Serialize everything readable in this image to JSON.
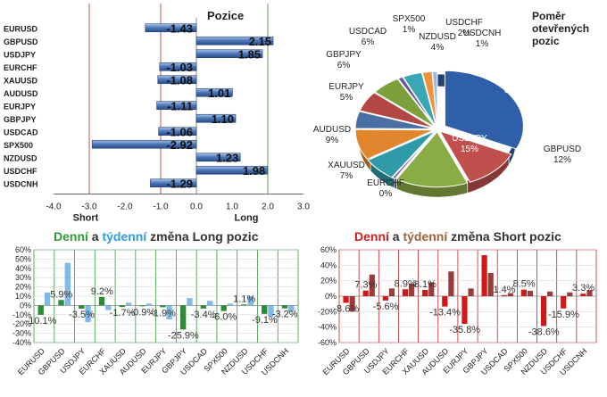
{
  "chart_data": [
    {
      "type": "bar",
      "orientation": "horizontal",
      "title": "Pozice",
      "categories": [
        "EURUSD",
        "GBPUSD",
        "USDJPY",
        "EURCHF",
        "XAUUSD",
        "AUDUSD",
        "EURJPY",
        "GBPJPY",
        "USDCAD",
        "SPX500",
        "NZDUSD",
        "USDCHF",
        "USDCNH"
      ],
      "values": [
        -1.43,
        2.15,
        1.85,
        -1.03,
        -1.08,
        1.01,
        -1.11,
        1.1,
        -1.06,
        -2.92,
        1.23,
        1.98,
        -1.29
      ],
      "value_labels": [
        "-1.43",
        "2.15",
        "1.85",
        "-1.03",
        "-1.08",
        "1.01",
        "-1.11",
        "1.10",
        "-1.06",
        "-2.92",
        "1.23",
        "1.98",
        "-1.29"
      ],
      "xlim": [
        -4.0,
        3.0
      ],
      "xticks": [
        "-4.0",
        "-3.0",
        "-2.0",
        "-1.0",
        "0.0",
        "1.0",
        "2.0",
        "3.0"
      ],
      "annotations": {
        "short": "Short",
        "long": "Long"
      },
      "reference_lines": [
        -3.0,
        -1.0,
        2.0
      ],
      "colors": {
        "bar": "#4a74b4",
        "short_line": "#c0504d",
        "long_line": "#5aa04a"
      }
    },
    {
      "type": "pie",
      "title_lines": [
        "Poměr",
        "otevřených",
        "pozic"
      ],
      "slices": [
        {
          "name": "EURUSD",
          "label": "32%",
          "value": 32,
          "color": "#2e5fa8"
        },
        {
          "name": "GBPUSD",
          "label": "12%",
          "value": 12,
          "color": "#c0504d"
        },
        {
          "name": "USDJPY",
          "label": "15%",
          "value": 15,
          "color": "#8aac46"
        },
        {
          "name": "EURCHF",
          "label": "0%",
          "value": 0.6,
          "color": "#7e5fa0"
        },
        {
          "name": "XAUUSD",
          "label": "7%",
          "value": 7,
          "color": "#2f9aa8"
        },
        {
          "name": "AUDUSD",
          "label": "9%",
          "value": 9,
          "color": "#e2862e"
        },
        {
          "name": "EURJPY",
          "label": "5%",
          "value": 5,
          "color": "#4a6fa5"
        },
        {
          "name": "GBPJPY",
          "label": "6%",
          "value": 6,
          "color": "#b24745"
        },
        {
          "name": "USDCAD",
          "label": "6%",
          "value": 6,
          "color": "#7ea03c"
        },
        {
          "name": "SPX500",
          "label": "1%",
          "value": 1,
          "color": "#6b57a0"
        },
        {
          "name": "NZDUSD",
          "label": "4%",
          "value": 4,
          "color": "#39a7b4"
        },
        {
          "name": "USDCHF",
          "label": "2%",
          "value": 2,
          "color": "#f0923a"
        },
        {
          "name": "USDCNH",
          "label": "1%",
          "value": 1,
          "color": "#9db9df"
        }
      ]
    },
    {
      "type": "bar",
      "title_parts": [
        {
          "text": "Denní",
          "color": "#2e9a3a"
        },
        {
          "text": " a ",
          "color": "#333333"
        },
        {
          "text": "týdenní",
          "color": "#2f9be0"
        },
        {
          "text": " změna Long pozic",
          "color": "#333333"
        }
      ],
      "categories": [
        "EURUSD",
        "GBPUSD",
        "USDJPY",
        "EURCHF",
        "XAUUSD",
        "AUDUSD",
        "EURJPY",
        "GBPJPY",
        "USDCAD",
        "SPX500",
        "NZDUSD",
        "USDCHF",
        "USDCNH"
      ],
      "series": [
        {
          "role": "daily",
          "values": [
            -10.1,
            5.9,
            -3.5,
            9.2,
            -1.7,
            -0.9,
            -1.9,
            -25.9,
            -3.4,
            -6.0,
            1.1,
            -9.1,
            -3.2
          ],
          "color": "#2e8b35"
        },
        {
          "role": "weekly",
          "values": [
            14,
            46,
            -18,
            -5,
            3,
            2,
            -15,
            8,
            5,
            2,
            10,
            -12,
            -7
          ],
          "color": "#6aaee8"
        }
      ],
      "value_labels": [
        {
          "cat": "EURUSD",
          "text": "-10.1%"
        },
        {
          "cat": "GBPUSD",
          "text": "5.9%"
        },
        {
          "cat": "USDJPY",
          "text": "-3.5%"
        },
        {
          "cat": "EURCHF",
          "text": "9.2%"
        },
        {
          "cat": "XAUUSD",
          "text": "-1.7%"
        },
        {
          "cat": "AUDUSD",
          "text": "-0.9%"
        },
        {
          "cat": "EURJPY",
          "text": "-1.9%"
        },
        {
          "cat": "GBPJPY",
          "text": "-25.9%"
        },
        {
          "cat": "USDCAD",
          "text": "-3.4%"
        },
        {
          "cat": "SPX500",
          "text": "-6.0%"
        },
        {
          "cat": "NZDUSD",
          "text": "1.1%"
        },
        {
          "cat": "USDCHF",
          "text": "-9.1%"
        },
        {
          "cat": "USDCNH",
          "text": "-3.2%"
        }
      ],
      "ylim": [
        -40,
        60
      ],
      "yticks": [
        "60%",
        "50%",
        "40%",
        "30%",
        "20%",
        "10%",
        "0%",
        "-10%",
        "-20%",
        "-30%",
        "-40%"
      ],
      "grid": true,
      "grid_color": "#2e9a3a"
    },
    {
      "type": "bar",
      "title_parts": [
        {
          "text": "Denní",
          "color": "#d02020"
        },
        {
          "text": " a ",
          "color": "#333333"
        },
        {
          "text": "týdenní",
          "color": "#a0603a"
        },
        {
          "text": " změna Short pozic",
          "color": "#333333"
        }
      ],
      "categories": [
        "EURUSD",
        "GBPUSD",
        "USDJPY",
        "EURCHF",
        "XAUUSD",
        "AUDUSD",
        "EURJPY",
        "GBPJPY",
        "USDCAD",
        "SPX500",
        "NZDUSD",
        "USDCHF",
        "USDCNH"
      ],
      "series": [
        {
          "role": "daily",
          "values": [
            -8.6,
            7.3,
            -5.6,
            8.9,
            8.1,
            -13.4,
            -35.8,
            53,
            1.4,
            8.5,
            -38.6,
            -15.9,
            3.3
          ],
          "color": "#d01818"
        },
        {
          "role": "weekly",
          "values": [
            -20,
            28,
            10,
            16,
            18,
            32,
            10,
            30,
            4,
            7,
            6,
            5,
            8
          ],
          "color": "#8a1a1a"
        }
      ],
      "value_labels": [
        {
          "cat": "EURUSD",
          "text": "-8.6%"
        },
        {
          "cat": "GBPUSD",
          "text": "7.3%"
        },
        {
          "cat": "USDJPY",
          "text": "-5.6%"
        },
        {
          "cat": "EURCHF",
          "text": "8.9%"
        },
        {
          "cat": "XAUUSD",
          "text": "8.1%"
        },
        {
          "cat": "AUDUSD",
          "text": "-13.4%"
        },
        {
          "cat": "EURJPY",
          "text": "-35.8%"
        },
        {
          "cat": "USDCAD",
          "text": "1.4%"
        },
        {
          "cat": "SPX500",
          "text": "8.5%"
        },
        {
          "cat": "NZDUSD",
          "text": "-38.6%"
        },
        {
          "cat": "USDCHF",
          "text": "-15.9%"
        },
        {
          "cat": "USDCNH",
          "text": "3.3%"
        }
      ],
      "ylim": [
        -40,
        60
      ],
      "yticks": [
        "60%",
        "40%",
        "20%",
        "0%",
        "-20%",
        "-40%",
        "-60%"
      ],
      "ytick_values": [
        60,
        40,
        20,
        0,
        -20,
        -40,
        -60
      ],
      "grid": true,
      "grid_color": "#c02020"
    }
  ]
}
